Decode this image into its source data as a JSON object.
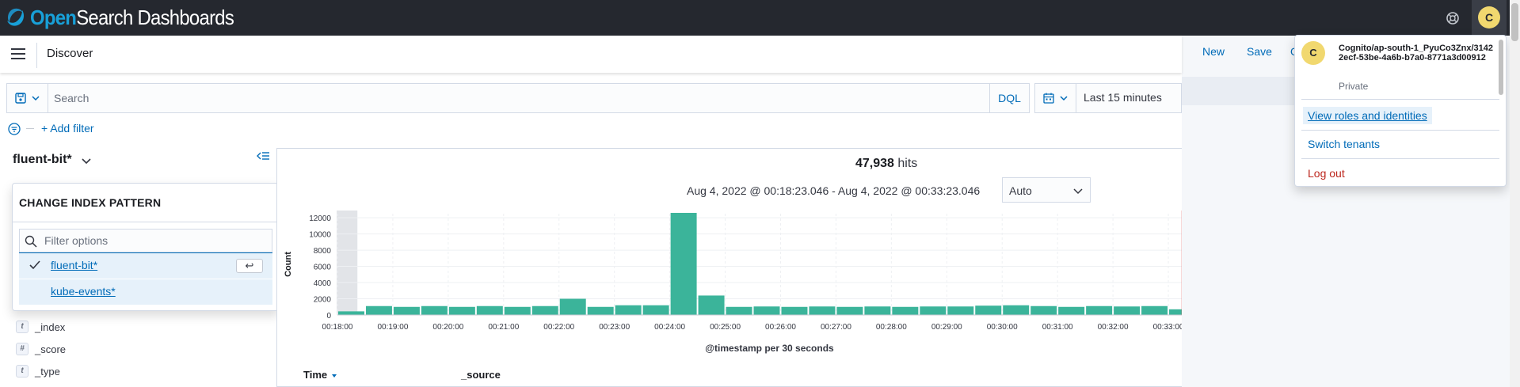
{
  "header": {
    "logo_part1": "Open",
    "logo_part2": "Search Dashboards",
    "avatar_initial": "C"
  },
  "nav": {
    "app_title": "Discover",
    "links": [
      "New",
      "Save",
      "O"
    ]
  },
  "query": {
    "search_placeholder": "Search",
    "language": "DQL",
    "date_range": "Last 15 minutes",
    "add_filter": "+ Add filter"
  },
  "sidebar": {
    "index_pattern": "fluent-bit*",
    "fields": [
      {
        "type": "t",
        "name": "_index"
      },
      {
        "type": "#",
        "name": "_score"
      },
      {
        "type": "t",
        "name": "_type"
      }
    ]
  },
  "index_popover": {
    "title": "CHANGE INDEX PATTERN",
    "filter_placeholder": "Filter options",
    "options": [
      "fluent-bit*",
      "kube-events*"
    ],
    "enter_key": "↩"
  },
  "histogram": {
    "hits_count": "47,938",
    "hits_label": "hits",
    "time_range": "Aug 4, 2022 @ 00:18:23.046 - Aug 4, 2022 @ 00:33:23.046",
    "interval": "Auto",
    "table_columns": [
      "Time",
      "_source"
    ]
  },
  "chart_data": {
    "type": "bar",
    "xlabel": "@timestamp per 30 seconds",
    "ylabel": "Count",
    "ylim": [
      0,
      12500
    ],
    "yticks": [
      0,
      2000,
      4000,
      6000,
      8000,
      10000,
      12000
    ],
    "xticks": [
      "00:18:00",
      "00:19:00",
      "00:20:00",
      "00:21:00",
      "00:22:00",
      "00:23:00",
      "00:24:00",
      "00:25:00",
      "00:26:00",
      "00:27:00",
      "00:28:00",
      "00:29:00",
      "00:30:00",
      "00:31:00",
      "00:32:00",
      "00:33:00"
    ],
    "values": [
      450,
      1100,
      1000,
      1100,
      1000,
      1100,
      1000,
      1100,
      2000,
      1000,
      1200,
      1200,
      12600,
      2400,
      1000,
      1050,
      1000,
      1050,
      1000,
      1050,
      1000,
      1050,
      1050,
      1150,
      1200,
      1100,
      1000,
      1100,
      1050,
      1100,
      700
    ],
    "bar_color": "#3bb49a",
    "marker_color": "#e05b5b"
  },
  "account": {
    "initial": "C",
    "name": "Cognito/ap-south-1_PyuCo3Znx/31422ecf-53be-4a6b-b7a0-8771a3d00912",
    "tenant": "Private",
    "roles": "View roles and identities",
    "switch": "Switch tenants",
    "logout": "Log out"
  }
}
